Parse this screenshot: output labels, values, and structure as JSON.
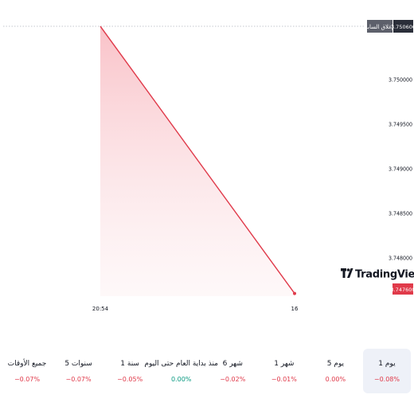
{
  "chart_data": {
    "type": "area",
    "x": [
      "20:54",
      "16"
    ],
    "values": [
      3.7506,
      3.7476
    ],
    "ylim": [
      3.74765,
      3.7506
    ],
    "yticks": [
      "3.750000",
      "3.749500",
      "3.749000",
      "3.748500",
      "3.748000"
    ],
    "yticks_values": [
      3.75,
      3.7495,
      3.749,
      3.7485,
      3.748
    ],
    "prev_close_label": "الإغلاق السابق",
    "prev_close_value": "3.750600",
    "last_value": "3.747600",
    "line_color": "#e03a4a",
    "fill_color": "#f7c6cc"
  },
  "watermark": "TradingView",
  "periods": [
    {
      "label": "1 يوم",
      "change": "−0.08%",
      "sign": "neg",
      "active": true
    },
    {
      "label": "5 يوم",
      "change": "0.00%",
      "sign": "neg",
      "active": false
    },
    {
      "label": "1 شهر",
      "change": "−0.01%",
      "sign": "neg",
      "active": false
    },
    {
      "label": "6 شهر",
      "change": "−0.02%",
      "sign": "neg",
      "active": false
    },
    {
      "label": "منذ بداية العام حتى اليوم",
      "change": "0.00%",
      "sign": "pos",
      "active": false
    },
    {
      "label": "1 سنة",
      "change": "−0.05%",
      "sign": "neg",
      "active": false
    },
    {
      "label": "5 سنوات",
      "change": "−0.07%",
      "sign": "neg",
      "active": false
    },
    {
      "label": "جميع الأوقات",
      "change": "−0.07%",
      "sign": "neg",
      "active": false
    }
  ]
}
